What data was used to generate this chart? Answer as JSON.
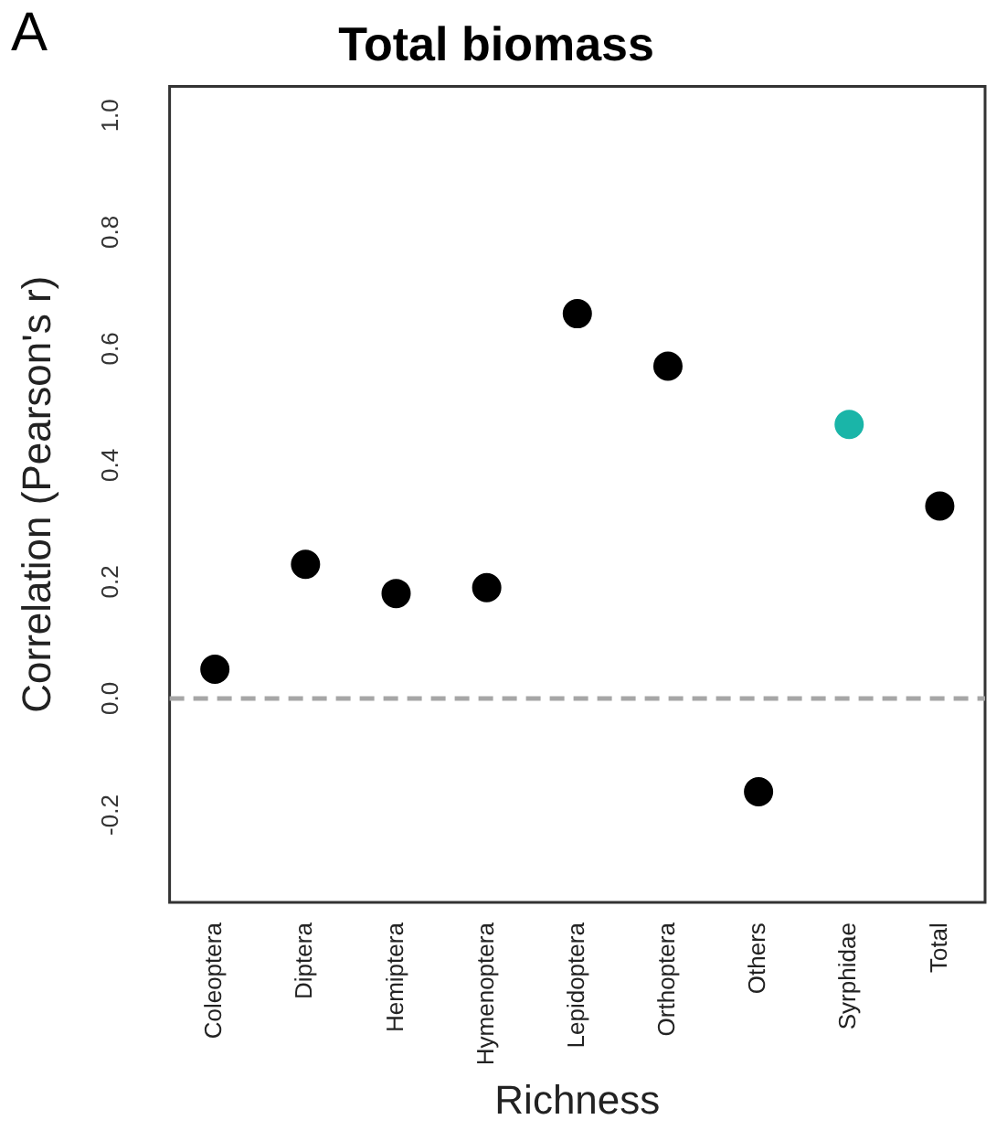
{
  "chart_data": {
    "type": "scatter",
    "title": "Total biomass",
    "xlabel": "Richness",
    "ylabel": "Correlation (Pearson's r)",
    "annotations": [
      "A"
    ],
    "categories": [
      "Coleoptera",
      "Diptera",
      "Hemiptera",
      "Hymenoptera",
      "Lepidoptera",
      "Orthoptera",
      "Others",
      "Syrphidae",
      "Total"
    ],
    "series": [
      {
        "values": [
          0.05,
          0.23,
          0.18,
          0.19,
          0.66,
          0.57,
          -0.16,
          0.47,
          0.33
        ],
        "colors": [
          "#000000",
          "#000000",
          "#000000",
          "#000000",
          "#000000",
          "#000000",
          "#000000",
          "#1ab5a8",
          "#000000"
        ]
      }
    ],
    "ylim": [
      -0.35,
      1.05
    ],
    "yticks": [
      -0.2,
      {
        "value": 0,
        "label": "0.0"
      },
      0.2,
      0.4,
      0.6,
      0.8,
      {
        "value": 1,
        "label": "1.0"
      }
    ],
    "ref_lines": [
      {
        "axis": "y",
        "value": 0,
        "color": "#a6a6a6",
        "line_style": "dashed"
      }
    ],
    "marker": "circle",
    "grid": false,
    "legend": false
  }
}
